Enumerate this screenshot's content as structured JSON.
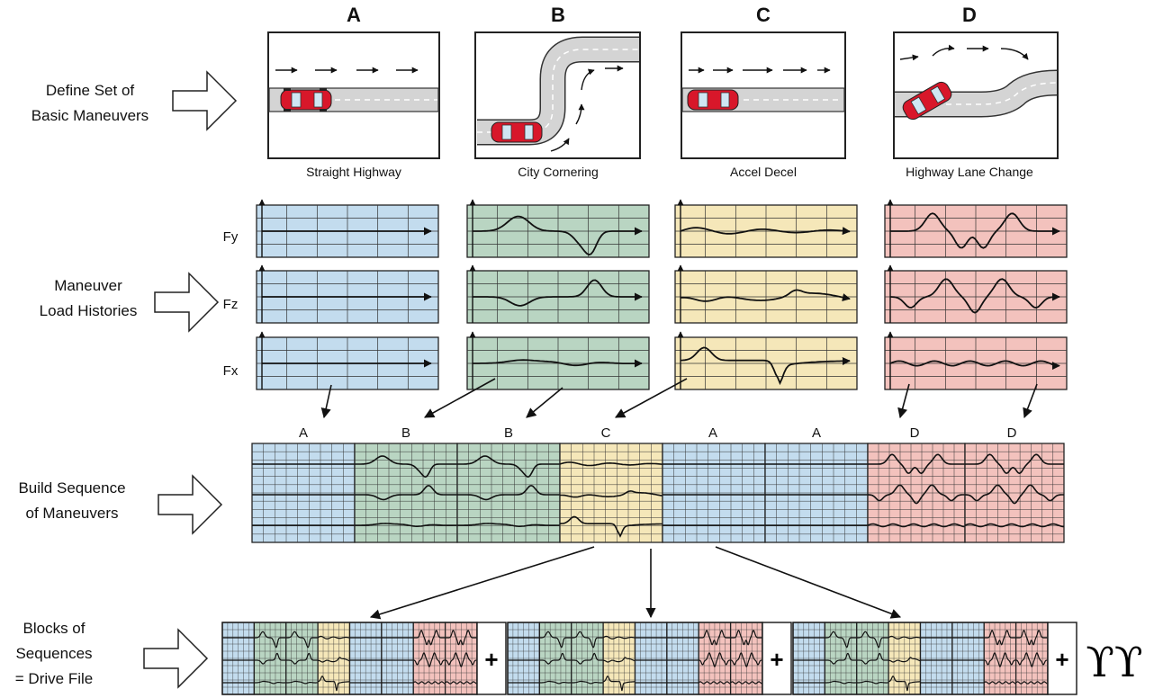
{
  "row_labels": {
    "define": [
      "Define Set of",
      "Basic Maneuvers"
    ],
    "histories": [
      "Maneuver",
      "Load Histories"
    ],
    "sequence": [
      "Build Sequence",
      "of Maneuvers"
    ],
    "blocks": [
      "Blocks of",
      "Sequences",
      "= Drive File"
    ]
  },
  "maneuvers": [
    {
      "letter": "A",
      "caption": "Straight Highway"
    },
    {
      "letter": "B",
      "caption": "City Cornering"
    },
    {
      "letter": "C",
      "caption": "Accel Decel"
    },
    {
      "letter": "D",
      "caption": "Highway Lane Change"
    }
  ],
  "force_labels": [
    "Fy",
    "Fz",
    "Fx"
  ],
  "sequence_labels": [
    "A",
    "B",
    "B",
    "C",
    "A",
    "A",
    "D",
    "D"
  ],
  "plus_symbol": "+",
  "repeat_symbol": "ϒϒ",
  "colors": {
    "A": "#c3dcee",
    "B": "#b9d5c2",
    "C": "#f5e7b9",
    "D": "#f3c2bd",
    "road": "#d4d4d4",
    "car": "#d8172a"
  }
}
